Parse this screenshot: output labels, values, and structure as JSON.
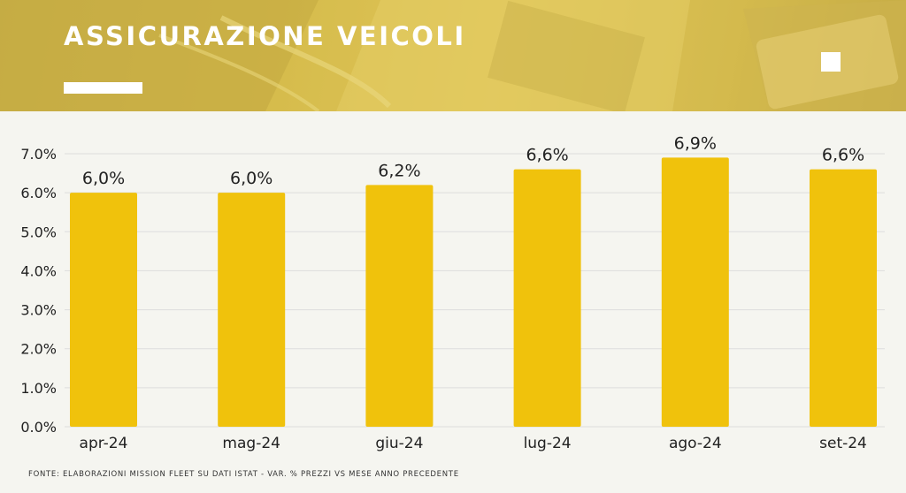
{
  "header": {
    "title": "ASSICURAZIONE VEICOLI"
  },
  "colors": {
    "bar": "#f0c20c",
    "header_bg": "#d6bd4c",
    "grid": "#dddddd",
    "text": "#222222"
  },
  "chart_data": {
    "type": "bar",
    "categories": [
      "apr-24",
      "mag-24",
      "giu-24",
      "lug-24",
      "ago-24",
      "set-24"
    ],
    "values": [
      6.0,
      6.0,
      6.2,
      6.6,
      6.9,
      6.6
    ],
    "data_labels": [
      "6,0%",
      "6,0%",
      "6,2%",
      "6,6%",
      "6,9%",
      "6,6%"
    ],
    "ylim": [
      0,
      7
    ],
    "yticks": [
      0,
      1,
      2,
      3,
      4,
      5,
      6,
      7
    ],
    "ytick_labels": [
      "0.0%",
      "1.0%",
      "2.0%",
      "3.0%",
      "4.0%",
      "5.0%",
      "6.0%",
      "7.0%"
    ],
    "grid": true,
    "legend": "none"
  },
  "footer": {
    "source": "FONTE: ELABORAZIONI MISSION FLEET SU DATI ISTAT - VAR. % PREZZI VS MESE ANNO PRECEDENTE"
  }
}
